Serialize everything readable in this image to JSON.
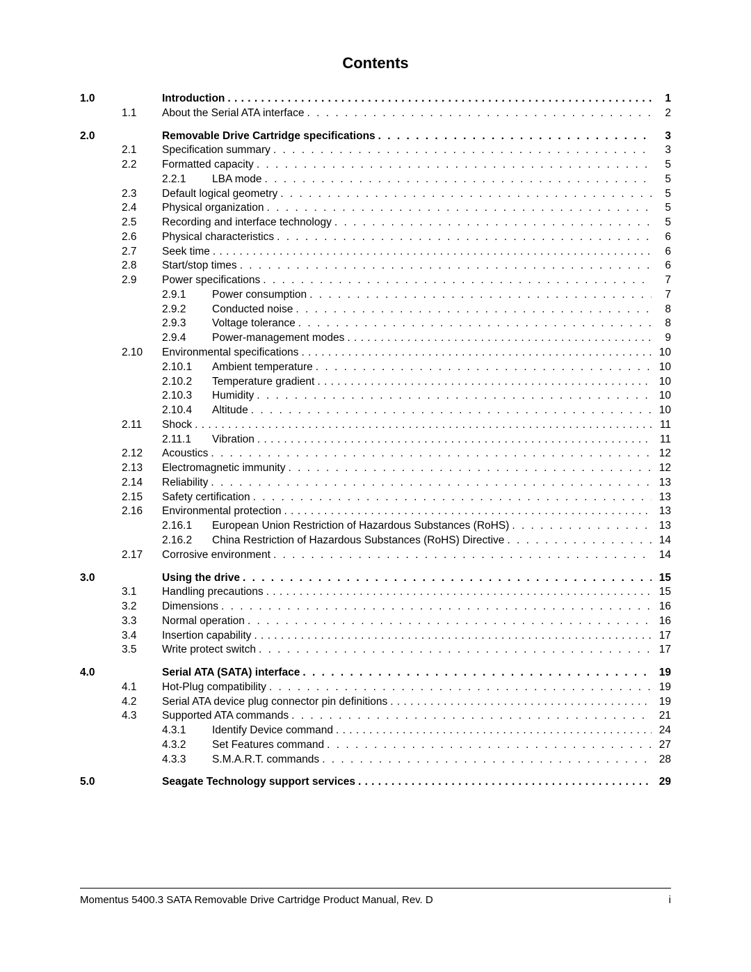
{
  "title": "Contents",
  "footer": {
    "left": "Momentus 5400.3 SATA Removable Drive Cartridge Product Manual, Rev. D",
    "right": "i"
  },
  "toc": [
    {
      "level": 1,
      "num": "1.0",
      "label": "Introduction",
      "page": "1",
      "bold": true,
      "tight": true
    },
    {
      "level": 2,
      "num": "1.1",
      "label": "About the Serial ATA interface",
      "page": "2"
    },
    {
      "level": 1,
      "num": "2.0",
      "label": "Removable Drive Cartridge specifications",
      "page": "3",
      "bold": true
    },
    {
      "level": 2,
      "num": "2.1",
      "label": "Specification summary",
      "page": "3"
    },
    {
      "level": 2,
      "num": "2.2",
      "label": "Formatted capacity",
      "page": "5"
    },
    {
      "level": 3,
      "num": "2.2.1",
      "label": "LBA mode",
      "page": "5"
    },
    {
      "level": 2,
      "num": "2.3",
      "label": "Default logical geometry",
      "page": "5"
    },
    {
      "level": 2,
      "num": "2.4",
      "label": "Physical organization",
      "page": "5"
    },
    {
      "level": 2,
      "num": "2.5",
      "label": "Recording and interface technology",
      "page": "5"
    },
    {
      "level": 2,
      "num": "2.6",
      "label": "Physical characteristics",
      "page": "6"
    },
    {
      "level": 2,
      "num": "2.7",
      "label": "Seek time",
      "page": "6",
      "tight": true
    },
    {
      "level": 2,
      "num": "2.8",
      "label": "Start/stop times",
      "page": "6"
    },
    {
      "level": 2,
      "num": "2.9",
      "label": "Power specifications",
      "page": "7"
    },
    {
      "level": 3,
      "num": "2.9.1",
      "label": "Power consumption",
      "page": "7"
    },
    {
      "level": 3,
      "num": "2.9.2",
      "label": "Conducted noise",
      "page": "8"
    },
    {
      "level": 3,
      "num": "2.9.3",
      "label": "Voltage tolerance",
      "page": "8"
    },
    {
      "level": 3,
      "num": "2.9.4",
      "label": "Power-management modes",
      "page": "9",
      "tight": true
    },
    {
      "level": 2,
      "num": "2.10",
      "label": "Environmental specifications",
      "page": "10",
      "tight": true
    },
    {
      "level": 3,
      "num": "2.10.1",
      "label": "Ambient temperature",
      "page": "10"
    },
    {
      "level": 3,
      "num": "2.10.2",
      "label": "Temperature gradient",
      "page": "10",
      "tight": true
    },
    {
      "level": 3,
      "num": "2.10.3",
      "label": "Humidity",
      "page": "10"
    },
    {
      "level": 3,
      "num": "2.10.4",
      "label": "Altitude",
      "page": "10"
    },
    {
      "level": 2,
      "num": "2.11",
      "label": "Shock",
      "page": "11",
      "tight": true
    },
    {
      "level": 3,
      "num": "2.11.1",
      "label": "Vibration",
      "page": "11",
      "tight": true
    },
    {
      "level": 2,
      "num": "2.12",
      "label": "Acoustics",
      "page": "12"
    },
    {
      "level": 2,
      "num": "2.13",
      "label": "Electromagnetic immunity",
      "page": "12"
    },
    {
      "level": 2,
      "num": "2.14",
      "label": "Reliability",
      "page": "13"
    },
    {
      "level": 2,
      "num": "2.15",
      "label": "Safety certification",
      "page": "13"
    },
    {
      "level": 2,
      "num": "2.16",
      "label": "Environmental protection",
      "page": "13",
      "tight": true
    },
    {
      "level": 3,
      "num": "2.16.1",
      "label": "European Union Restriction of Hazardous Substances (RoHS)",
      "page": "13"
    },
    {
      "level": 3,
      "num": "2.16.2",
      "label": "China Restriction of Hazardous Substances (RoHS) Directive",
      "page": "14"
    },
    {
      "level": 2,
      "num": "2.17",
      "label": "Corrosive environment",
      "page": "14"
    },
    {
      "level": 1,
      "num": "3.0",
      "label": "Using the drive",
      "page": "15",
      "bold": true
    },
    {
      "level": 2,
      "num": "3.1",
      "label": "Handling precautions",
      "page": "15",
      "tight": true
    },
    {
      "level": 2,
      "num": "3.2",
      "label": "Dimensions",
      "page": "16"
    },
    {
      "level": 2,
      "num": "3.3",
      "label": "Normal operation",
      "page": "16"
    },
    {
      "level": 2,
      "num": "3.4",
      "label": "Insertion capability",
      "page": "17",
      "tight": true
    },
    {
      "level": 2,
      "num": "3.5",
      "label": "Write protect switch",
      "page": "17"
    },
    {
      "level": 1,
      "num": "4.0",
      "label": "Serial ATA (SATA) interface",
      "page": "19",
      "bold": true
    },
    {
      "level": 2,
      "num": "4.1",
      "label": "Hot-Plug compatibility",
      "page": "19"
    },
    {
      "level": 2,
      "num": "4.2",
      "label": "Serial ATA device plug connector pin definitions",
      "page": "19",
      "tight": true
    },
    {
      "level": 2,
      "num": "4.3",
      "label": "Supported ATA commands",
      "page": "21"
    },
    {
      "level": 3,
      "num": "4.3.1",
      "label": "Identify Device command",
      "page": "24",
      "tight": true
    },
    {
      "level": 3,
      "num": "4.3.2",
      "label": "Set Features command",
      "page": "27"
    },
    {
      "level": 3,
      "num": "4.3.3",
      "label": "S.M.A.R.T. commands",
      "page": "28"
    },
    {
      "level": 1,
      "num": "5.0",
      "label": "Seagate Technology support services",
      "page": "29",
      "bold": true,
      "tight": true
    }
  ]
}
